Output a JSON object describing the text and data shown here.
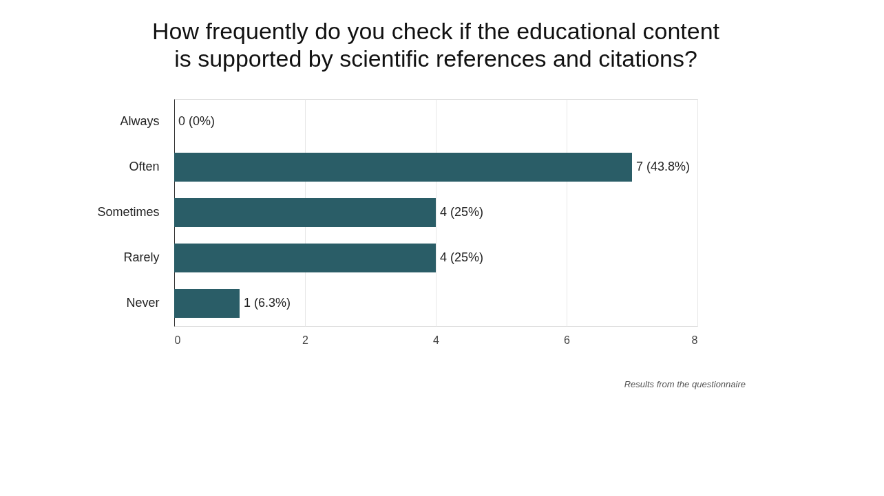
{
  "chart_data": {
    "type": "bar",
    "orientation": "horizontal",
    "title": "How frequently do you check if the educational content is supported by scientific references and citations?",
    "categories": [
      "Always",
      "Often",
      "Sometimes",
      "Rarely",
      "Never"
    ],
    "values": [
      0,
      7,
      4,
      4,
      1
    ],
    "value_labels": [
      "0 (0%)",
      "7 (43.8%)",
      "4 (25%)",
      "4 (25%)",
      "1 (6.3%)"
    ],
    "color": "#2a5d67",
    "xlim": [
      0,
      8
    ],
    "xticks": [
      0,
      2,
      4,
      6,
      8
    ],
    "grid": "x",
    "annotations": [
      "Results from the questionnaire"
    ]
  }
}
